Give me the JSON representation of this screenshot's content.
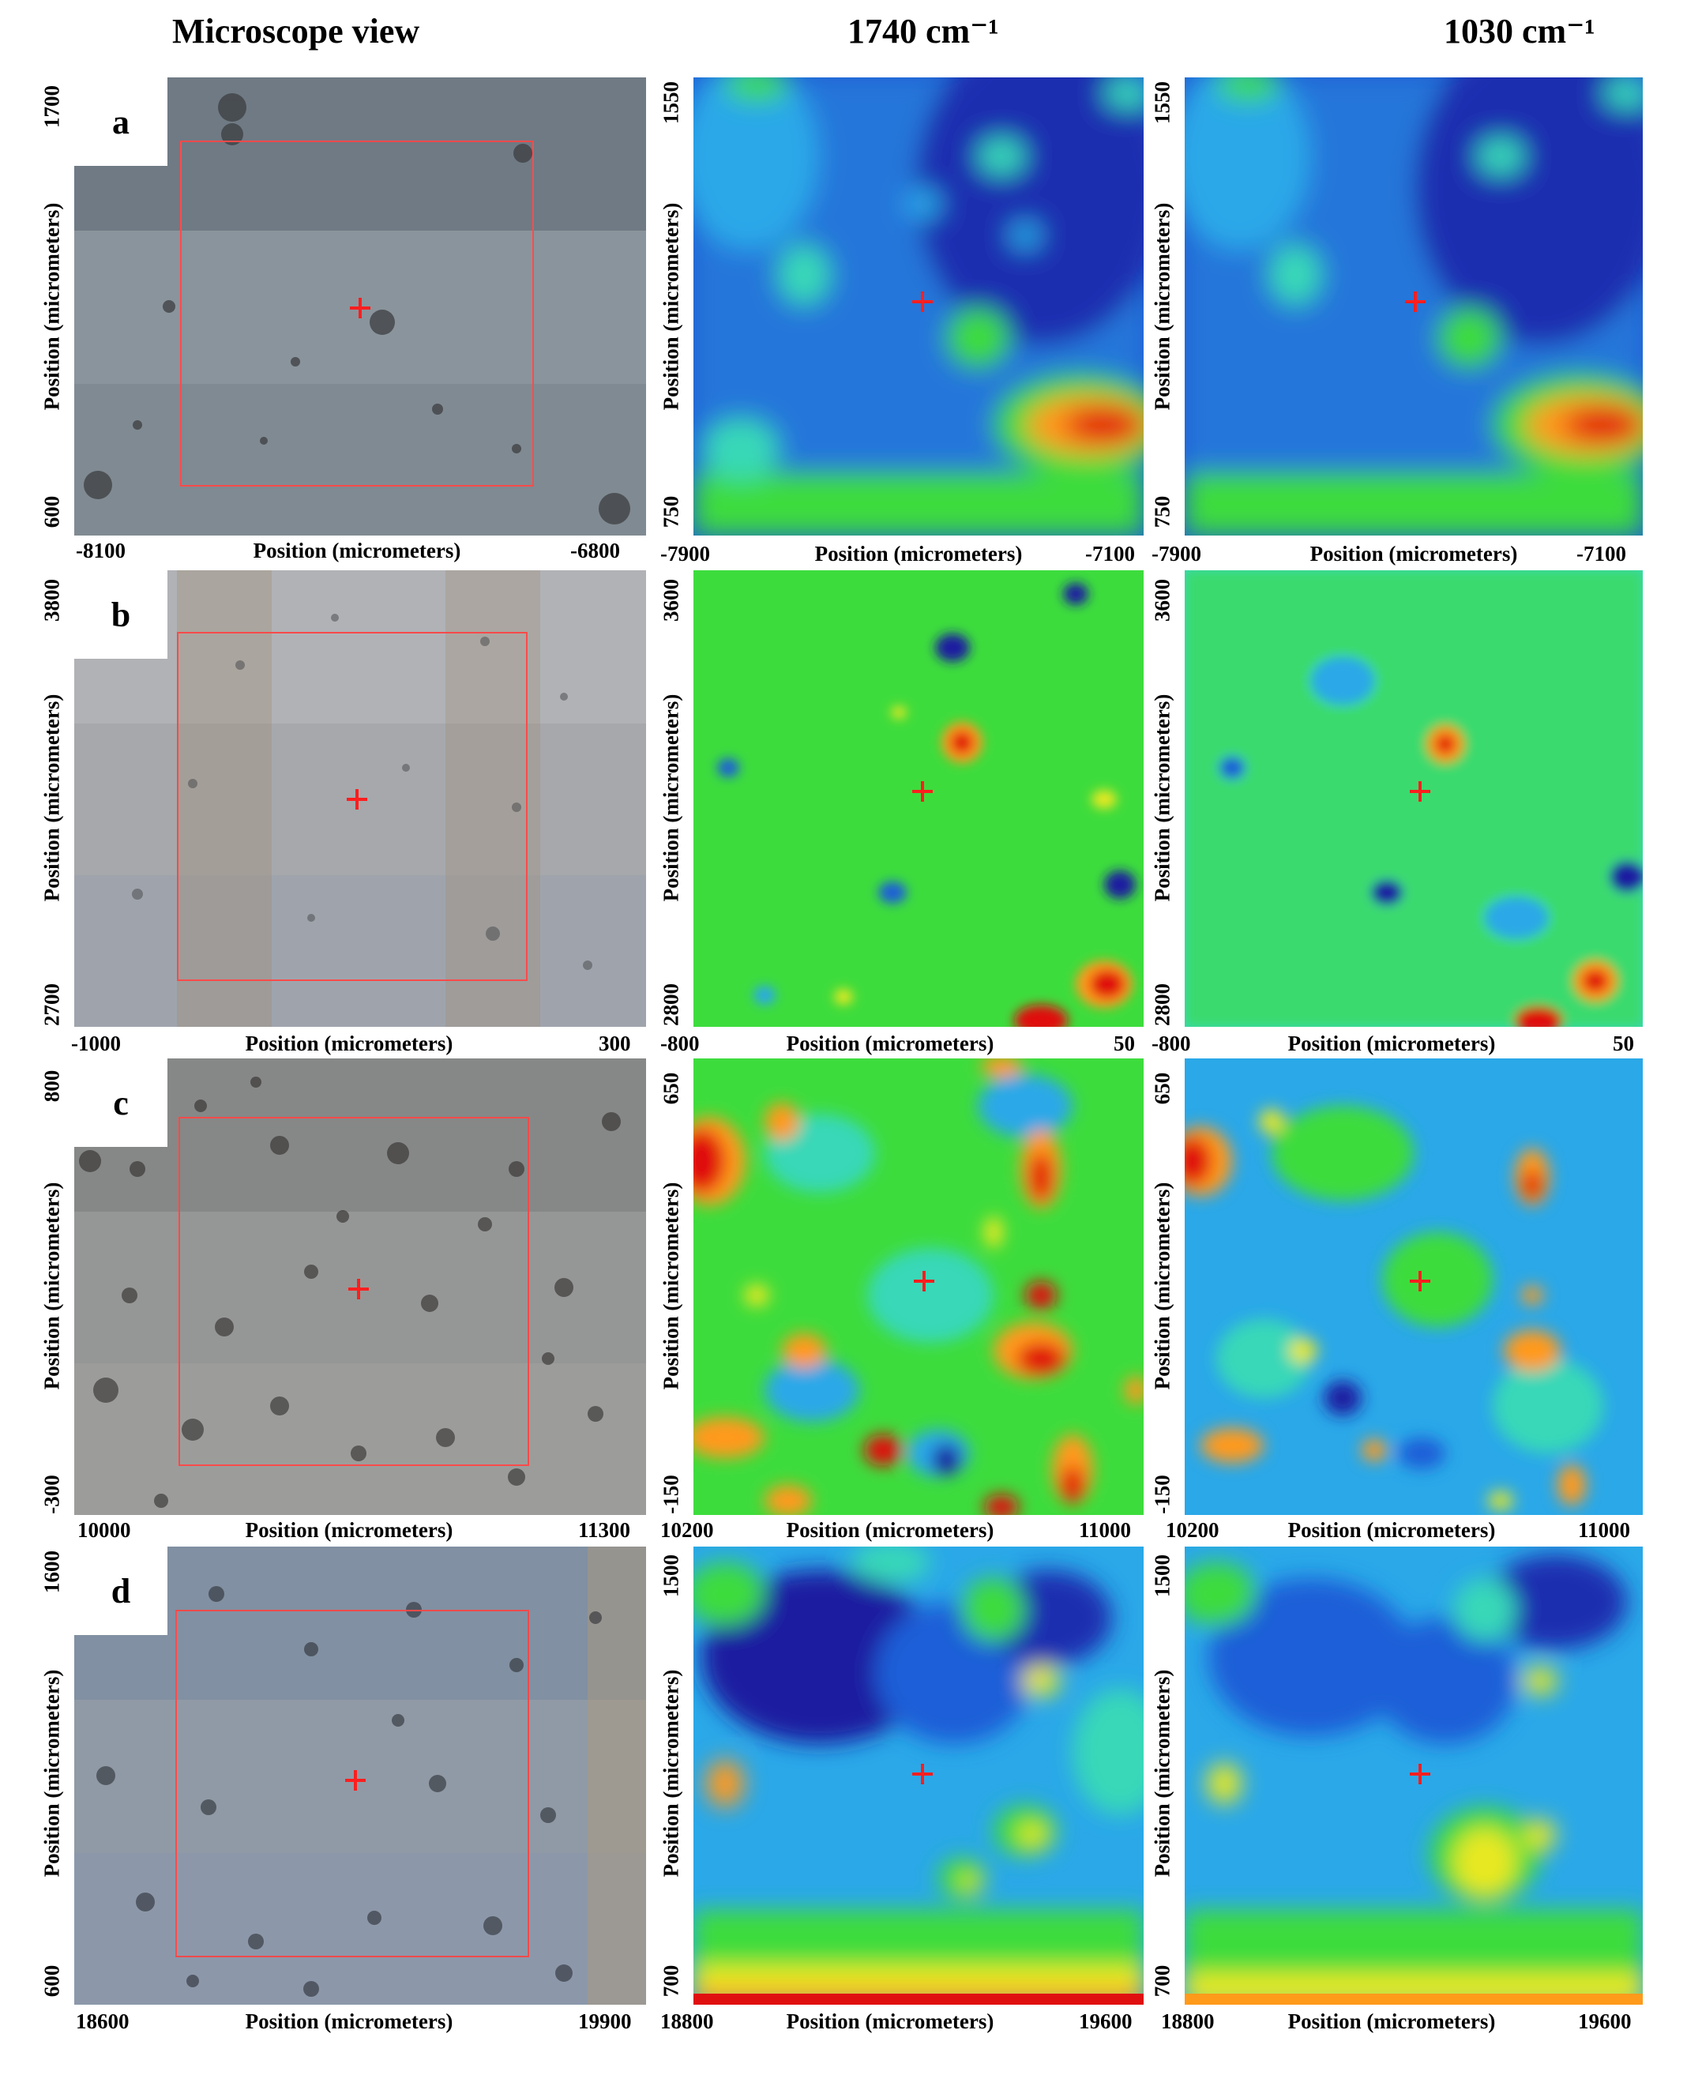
{
  "headers": {
    "microscope": "Microscope view",
    "band1": "1740 cm⁻¹",
    "band2": "1030 cm⁻¹"
  },
  "axis_label": "Position (micrometers)",
  "colormap": [
    "#1a1aa0",
    "#1e5fd8",
    "#2aa8e8",
    "#38d8b8",
    "#3ddc3d",
    "#e8e820",
    "#ff9a1a",
    "#e01010"
  ],
  "rows": [
    {
      "letter": "a",
      "micro": {
        "tint": "#7a8590",
        "x_min": "-8100",
        "x_max": "-6800",
        "y_top": "1700",
        "y_bottom": "600"
      },
      "map1": {
        "x_min": "-7900",
        "x_max": "-7100",
        "y_top": "1550",
        "y_bottom": "750"
      },
      "map2": {
        "x_min": "-7900",
        "x_max": "-7100",
        "y_top": "1550",
        "y_bottom": "750"
      }
    },
    {
      "letter": "b",
      "micro": {
        "tint": "#9aa0a8",
        "x_min": "-1000",
        "x_max": "300",
        "y_top": "3800",
        "y_bottom": "2700"
      },
      "map1": {
        "x_min": "-800",
        "x_max": "50",
        "y_top": "3600",
        "y_bottom": "2800"
      },
      "map2": {
        "x_min": "-800",
        "x_max": "50",
        "y_top": "3600",
        "y_bottom": "2800"
      }
    },
    {
      "letter": "c",
      "micro": {
        "tint": "#8d8f8e",
        "x_min": "10000",
        "x_max": "11300",
        "y_top": "800",
        "y_bottom": "-300"
      },
      "map1": {
        "x_min": "10200",
        "x_max": "11000",
        "y_top": "650",
        "y_bottom": "-150"
      },
      "map2": {
        "x_min": "10200",
        "x_max": "11000",
        "y_top": "650",
        "y_bottom": "-150"
      }
    },
    {
      "letter": "d",
      "micro": {
        "tint": "#8a97a8",
        "x_min": "18600",
        "x_max": "19900",
        "y_top": "1600",
        "y_bottom": "600"
      },
      "map1": {
        "x_min": "18800",
        "x_max": "19600",
        "y_top": "1500",
        "y_bottom": "700"
      },
      "map2": {
        "x_min": "18800",
        "x_max": "19600",
        "y_top": "1500",
        "y_bottom": "700"
      }
    }
  ]
}
